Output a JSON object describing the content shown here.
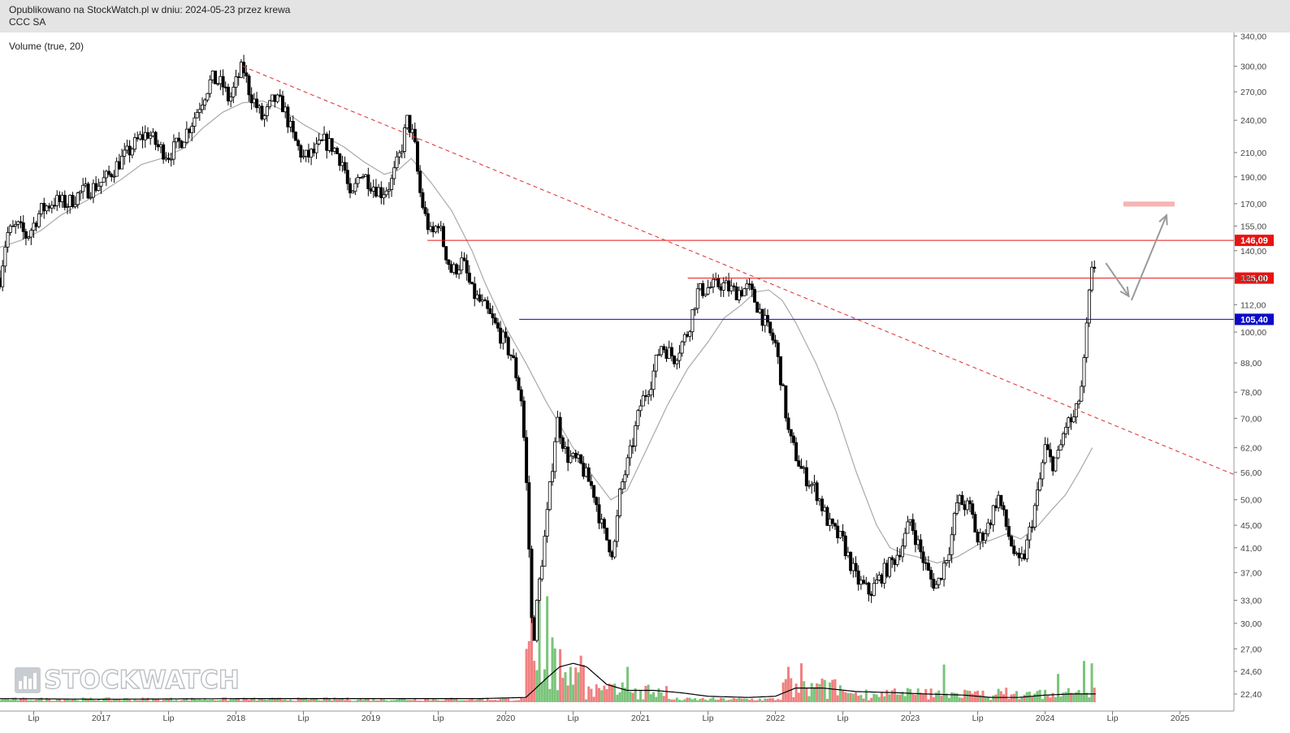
{
  "header": {
    "published_line": "Opublikowano na StockWatch.pl w dniu: 2024-05-23 przez krewa",
    "ticker": "CCC SA"
  },
  "watermark": {
    "text": "STOCKWATCH",
    "icon": "bar-chart-logo-icon"
  },
  "colors": {
    "candle": "#000000",
    "ma": "#a9a9a9",
    "resistance": "#e81313",
    "support": "#0a0ac8",
    "trendline": "#e03c3c",
    "volume_up": "#7ac47a",
    "volume_down": "#f08080",
    "volume_ma": "#000000",
    "target_box": "#f6b4b4",
    "arrow": "#9a9a9a"
  },
  "chart_data": {
    "type": "candlestick",
    "title": "",
    "indicator_label": "Volume (true, 20)",
    "y_scale": "log",
    "ylim": [
      21.3,
      345
    ],
    "y_ticks": [
      "340,00",
      "300,00",
      "270,00",
      "240,00",
      "210,00",
      "190,00",
      "170,00",
      "155,00",
      "140,00",
      "125,00",
      "112,00",
      "100,00",
      "88,00",
      "78,00",
      "70,00",
      "62,00",
      "56,00",
      "50,00",
      "45,00",
      "41,00",
      "37,00",
      "33,00",
      "30,00",
      "27,00",
      "24,60",
      "22,40"
    ],
    "x_ticks": [
      {
        "label": "Lip",
        "t": 2016.5
      },
      {
        "label": "2017",
        "t": 2017.0
      },
      {
        "label": "Lip",
        "t": 2017.5
      },
      {
        "label": "2018",
        "t": 2018.0
      },
      {
        "label": "Lip",
        "t": 2018.5
      },
      {
        "label": "2019",
        "t": 2019.0
      },
      {
        "label": "Lip",
        "t": 2019.5
      },
      {
        "label": "2020",
        "t": 2020.0
      },
      {
        "label": "Lip",
        "t": 2020.5
      },
      {
        "label": "2021",
        "t": 2021.0
      },
      {
        "label": "Lip",
        "t": 2021.5
      },
      {
        "label": "2022",
        "t": 2022.0
      },
      {
        "label": "Lip",
        "t": 2022.5
      },
      {
        "label": "2023",
        "t": 2023.0
      },
      {
        "label": "Lip",
        "t": 2023.5
      },
      {
        "label": "2024",
        "t": 2024.0
      },
      {
        "label": "Lip",
        "t": 2024.5
      },
      {
        "label": "2025",
        "t": 2025.0
      }
    ],
    "xlim": [
      2016.25,
      2025.4
    ],
    "price_path": [
      [
        2016.25,
        125
      ],
      [
        2016.3,
        150
      ],
      [
        2016.38,
        155
      ],
      [
        2016.45,
        148
      ],
      [
        2016.55,
        165
      ],
      [
        2016.65,
        172
      ],
      [
        2016.75,
        170
      ],
      [
        2016.85,
        178
      ],
      [
        2016.95,
        182
      ],
      [
        2017.05,
        190
      ],
      [
        2017.12,
        200
      ],
      [
        2017.2,
        210
      ],
      [
        2017.28,
        222
      ],
      [
        2017.35,
        228
      ],
      [
        2017.42,
        215
      ],
      [
        2017.5,
        208
      ],
      [
        2017.6,
        222
      ],
      [
        2017.68,
        240
      ],
      [
        2017.75,
        262
      ],
      [
        2017.82,
        285
      ],
      [
        2017.9,
        278
      ],
      [
        2017.95,
        260
      ],
      [
        2018.02,
        288
      ],
      [
        2018.05,
        300
      ],
      [
        2018.1,
        270
      ],
      [
        2018.15,
        255
      ],
      [
        2018.2,
        240
      ],
      [
        2018.28,
        262
      ],
      [
        2018.35,
        255
      ],
      [
        2018.42,
        225
      ],
      [
        2018.5,
        205
      ],
      [
        2018.58,
        210
      ],
      [
        2018.65,
        220
      ],
      [
        2018.72,
        215
      ],
      [
        2018.8,
        200
      ],
      [
        2018.85,
        170
      ],
      [
        2018.92,
        195
      ],
      [
        2019.0,
        185
      ],
      [
        2019.08,
        178
      ],
      [
        2019.15,
        185
      ],
      [
        2019.22,
        210
      ],
      [
        2019.27,
        240
      ],
      [
        2019.32,
        222
      ],
      [
        2019.36,
        180
      ],
      [
        2019.4,
        162
      ],
      [
        2019.45,
        148
      ],
      [
        2019.5,
        158
      ],
      [
        2019.55,
        140
      ],
      [
        2019.6,
        128
      ],
      [
        2019.68,
        134
      ],
      [
        2019.75,
        118
      ],
      [
        2019.85,
        110
      ],
      [
        2019.95,
        100
      ],
      [
        2020.05,
        90
      ],
      [
        2020.12,
        75
      ],
      [
        2020.16,
        50
      ],
      [
        2020.2,
        27
      ],
      [
        2020.24,
        34
      ],
      [
        2020.3,
        45
      ],
      [
        2020.38,
        70
      ],
      [
        2020.45,
        60
      ],
      [
        2020.55,
        58
      ],
      [
        2020.65,
        52
      ],
      [
        2020.72,
        44
      ],
      [
        2020.8,
        40
      ],
      [
        2020.85,
        52
      ],
      [
        2020.92,
        60
      ],
      [
        2021.0,
        74
      ],
      [
        2021.08,
        82
      ],
      [
        2021.15,
        95
      ],
      [
        2021.25,
        90
      ],
      [
        2021.35,
        100
      ],
      [
        2021.42,
        118
      ],
      [
        2021.5,
        120
      ],
      [
        2021.6,
        122
      ],
      [
        2021.7,
        118
      ],
      [
        2021.8,
        120
      ],
      [
        2021.88,
        110
      ],
      [
        2021.95,
        100
      ],
      [
        2022.0,
        95
      ],
      [
        2022.05,
        80
      ],
      [
        2022.1,
        65
      ],
      [
        2022.2,
        56
      ],
      [
        2022.3,
        52
      ],
      [
        2022.4,
        45
      ],
      [
        2022.5,
        42
      ],
      [
        2022.6,
        36
      ],
      [
        2022.7,
        34
      ],
      [
        2022.8,
        37
      ],
      [
        2022.88,
        39
      ],
      [
        2022.95,
        42
      ],
      [
        2023.0,
        46
      ],
      [
        2023.08,
        40
      ],
      [
        2023.15,
        36
      ],
      [
        2023.2,
        35
      ],
      [
        2023.3,
        42
      ],
      [
        2023.35,
        50
      ],
      [
        2023.45,
        48
      ],
      [
        2023.5,
        42
      ],
      [
        2023.58,
        45
      ],
      [
        2023.65,
        51
      ],
      [
        2023.72,
        44
      ],
      [
        2023.8,
        38
      ],
      [
        2023.85,
        40
      ],
      [
        2023.95,
        52
      ],
      [
        2024.0,
        62
      ],
      [
        2024.05,
        58
      ],
      [
        2024.1,
        60
      ],
      [
        2024.15,
        68
      ],
      [
        2024.22,
        70
      ],
      [
        2024.28,
        82
      ],
      [
        2024.32,
        112
      ],
      [
        2024.35,
        130
      ],
      [
        2024.38,
        133
      ]
    ],
    "ma_path": [
      [
        2016.25,
        142
      ],
      [
        2016.4,
        146
      ],
      [
        2016.55,
        152
      ],
      [
        2016.7,
        162
      ],
      [
        2016.85,
        170
      ],
      [
        2017.0,
        178
      ],
      [
        2017.15,
        188
      ],
      [
        2017.3,
        200
      ],
      [
        2017.45,
        205
      ],
      [
        2017.6,
        213
      ],
      [
        2017.75,
        232
      ],
      [
        2017.9,
        248
      ],
      [
        2018.05,
        258
      ],
      [
        2018.2,
        260
      ],
      [
        2018.35,
        250
      ],
      [
        2018.5,
        236
      ],
      [
        2018.65,
        225
      ],
      [
        2018.8,
        215
      ],
      [
        2018.95,
        202
      ],
      [
        2019.1,
        192
      ],
      [
        2019.2,
        195
      ],
      [
        2019.3,
        205
      ],
      [
        2019.45,
        185
      ],
      [
        2019.6,
        165
      ],
      [
        2019.75,
        140
      ],
      [
        2019.85,
        122
      ],
      [
        2020.0,
        102
      ],
      [
        2020.15,
        88
      ],
      [
        2020.3,
        75
      ],
      [
        2020.5,
        62
      ],
      [
        2020.65,
        55
      ],
      [
        2020.78,
        50
      ],
      [
        2020.9,
        52
      ],
      [
        2021.05,
        62
      ],
      [
        2021.2,
        74
      ],
      [
        2021.35,
        86
      ],
      [
        2021.5,
        96
      ],
      [
        2021.62,
        106
      ],
      [
        2021.75,
        112
      ],
      [
        2021.85,
        118
      ],
      [
        2021.95,
        119
      ],
      [
        2022.05,
        114
      ],
      [
        2022.15,
        104
      ],
      [
        2022.3,
        88
      ],
      [
        2022.45,
        72
      ],
      [
        2022.6,
        56
      ],
      [
        2022.75,
        45
      ],
      [
        2022.85,
        41
      ],
      [
        2022.95,
        40
      ],
      [
        2023.05,
        39.5
      ],
      [
        2023.2,
        38.5
      ],
      [
        2023.35,
        39.5
      ],
      [
        2023.5,
        41.5
      ],
      [
        2023.62,
        42.5
      ],
      [
        2023.72,
        43.5
      ],
      [
        2023.82,
        42.5
      ],
      [
        2023.95,
        45
      ],
      [
        2024.05,
        48
      ],
      [
        2024.15,
        51
      ],
      [
        2024.25,
        56
      ],
      [
        2024.35,
        62
      ]
    ],
    "levels": [
      {
        "label": "146,09",
        "value": 146.09,
        "color": "#e81313",
        "x_start": 2019.42
      },
      {
        "label": "125,00",
        "value": 125.0,
        "color": "#e81313",
        "x_start": 2021.35
      },
      {
        "label": "105,40",
        "value": 105.4,
        "color": "#0a0ac8",
        "x_start": 2020.1
      }
    ],
    "trendline": {
      "style": "dashed",
      "from": [
        2018.05,
        300
      ],
      "to": [
        2025.4,
        55.5
      ]
    },
    "target_zone": {
      "from_t": 2024.58,
      "to_t": 2024.96,
      "y_top": 171.5,
      "y_bottom": 168
    },
    "projection_arrows": [
      {
        "from": [
          2024.45,
          133
        ],
        "to": [
          2024.62,
          116
        ]
      },
      {
        "from": [
          2024.64,
          114
        ],
        "to": [
          2024.9,
          162
        ]
      }
    ],
    "volume": {
      "label": "Volume (true, 20)",
      "spikes": [
        {
          "t": 2020.2,
          "level": 1.0
        },
        {
          "t": 2020.25,
          "level": 0.85
        },
        {
          "t": 2020.3,
          "level": 0.9
        },
        {
          "t": 2020.35,
          "level": 0.55
        },
        {
          "t": 2020.4,
          "level": 0.45
        },
        {
          "t": 2020.48,
          "level": 0.3
        },
        {
          "t": 2020.9,
          "level": 0.3
        },
        {
          "t": 2022.1,
          "level": 0.3
        },
        {
          "t": 2022.2,
          "level": 0.33
        },
        {
          "t": 2023.25,
          "level": 0.32
        },
        {
          "t": 2024.1,
          "level": 0.24
        },
        {
          "t": 2024.28,
          "level": 0.35
        },
        {
          "t": 2024.35,
          "level": 0.33
        }
      ],
      "ma_path": [
        [
          2016.25,
          0.03
        ],
        [
          2017.0,
          0.025
        ],
        [
          2018.0,
          0.03
        ],
        [
          2019.0,
          0.03
        ],
        [
          2019.8,
          0.03
        ],
        [
          2020.15,
          0.04
        ],
        [
          2020.3,
          0.2
        ],
        [
          2020.4,
          0.3
        ],
        [
          2020.5,
          0.33
        ],
        [
          2020.6,
          0.3
        ],
        [
          2020.75,
          0.15
        ],
        [
          2020.9,
          0.1
        ],
        [
          2021.1,
          0.1
        ],
        [
          2021.3,
          0.08
        ],
        [
          2021.5,
          0.05
        ],
        [
          2021.8,
          0.04
        ],
        [
          2022.0,
          0.05
        ],
        [
          2022.15,
          0.12
        ],
        [
          2022.35,
          0.12
        ],
        [
          2022.6,
          0.09
        ],
        [
          2022.9,
          0.08
        ],
        [
          2023.1,
          0.07
        ],
        [
          2023.4,
          0.06
        ],
        [
          2023.6,
          0.04
        ],
        [
          2023.8,
          0.04
        ],
        [
          2024.0,
          0.06
        ],
        [
          2024.2,
          0.07
        ],
        [
          2024.38,
          0.07
        ]
      ]
    }
  }
}
